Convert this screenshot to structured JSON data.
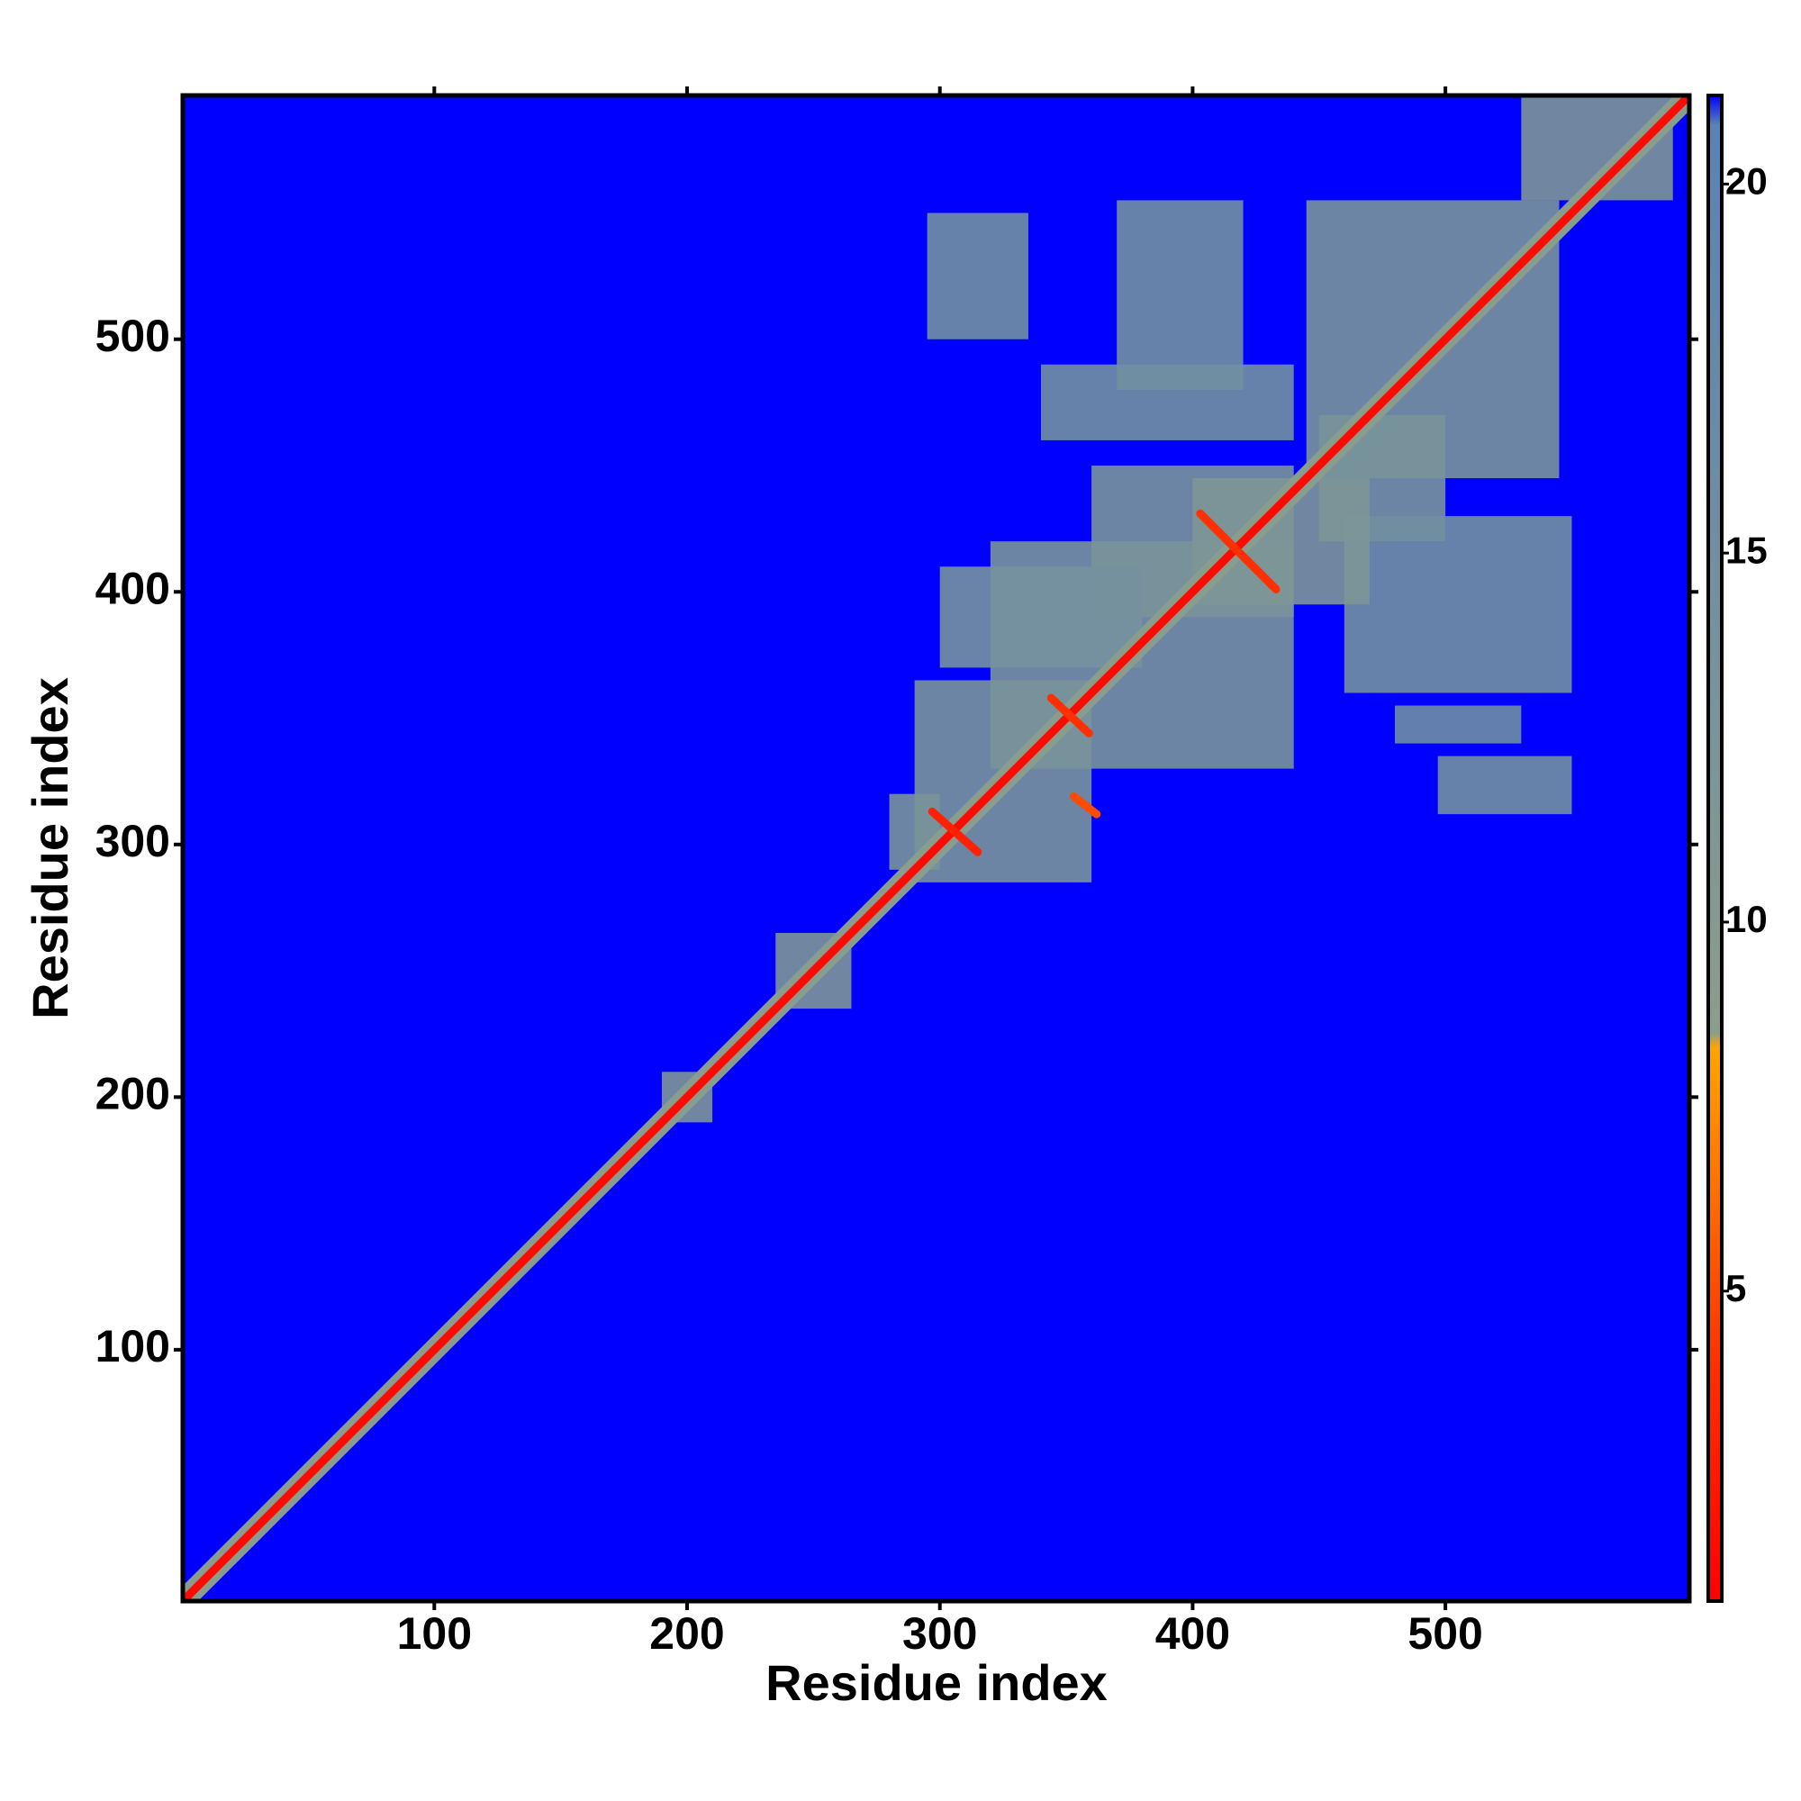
{
  "chart_data": {
    "type": "heatmap",
    "x_label": "Residue index",
    "y_label": "Residue index",
    "xlim": [
      0.5,
      596.5
    ],
    "ylim": [
      0.5,
      596.5
    ],
    "xticks": [
      100,
      200,
      300,
      400,
      500
    ],
    "yticks": [
      100,
      200,
      300,
      400,
      500
    ],
    "fill_value": 21.2,
    "clim": [
      0.8,
      21.2
    ],
    "cticks": [
      5,
      10,
      15,
      20
    ],
    "colorscale": [
      {
        "value": 0.8,
        "color": "#ff0000"
      },
      {
        "value": 4,
        "color": "#ff3000"
      },
      {
        "value": 8.3,
        "color": "#ffa500"
      },
      {
        "value": 8.5,
        "color": "#8a9e8c"
      },
      {
        "value": 20.8,
        "color": "#5b82b4"
      },
      {
        "value": 21.2,
        "color": "#0000ff"
      }
    ],
    "regions": [
      {
        "x": [
          290,
          360
        ],
        "y": [
          285,
          365
        ],
        "value": 13
      },
      {
        "x": [
          320,
          440
        ],
        "y": [
          330,
          420
        ],
        "value": 13
      },
      {
        "x": [
          360,
          440
        ],
        "y": [
          390,
          450
        ],
        "value": 13
      },
      {
        "x": [
          300,
          380
        ],
        "y": [
          370,
          410
        ],
        "value": 14
      },
      {
        "x": [
          295,
          335
        ],
        "y": [
          500,
          550
        ],
        "value": 15
      },
      {
        "x": [
          370,
          420
        ],
        "y": [
          480,
          555
        ],
        "value": 15
      },
      {
        "x": [
          340,
          440
        ],
        "y": [
          460,
          490
        ],
        "value": 15
      },
      {
        "x": [
          445,
          545
        ],
        "y": [
          445,
          555
        ],
        "value": 13
      },
      {
        "x": [
          450,
          500
        ],
        "y": [
          420,
          470
        ],
        "value": 13
      },
      {
        "x": [
          530,
          590
        ],
        "y": [
          555,
          596
        ],
        "value": 12
      },
      {
        "x": [
          460,
          550
        ],
        "y": [
          360,
          430
        ],
        "value": 15
      },
      {
        "x": [
          497,
          550
        ],
        "y": [
          312,
          335
        ],
        "value": 15
      },
      {
        "x": [
          480,
          530
        ],
        "y": [
          340,
          355
        ],
        "value": 16
      },
      {
        "x": [
          190,
          210
        ],
        "y": [
          190,
          210
        ],
        "value": 12
      },
      {
        "x": [
          235,
          265
        ],
        "y": [
          235,
          265
        ],
        "value": 12
      },
      {
        "x": [
          400,
          470
        ],
        "y": [
          395,
          445
        ],
        "value": 12
      },
      {
        "x": [
          280,
          300
        ],
        "y": [
          290,
          320
        ],
        "value": 13
      }
    ],
    "lines": [
      {
        "x": [
          1,
          596
        ],
        "y": [
          1,
          596
        ],
        "value": 9
      },
      {
        "x": [
          1,
          596
        ],
        "y": [
          1,
          596
        ],
        "value": 1.5
      },
      {
        "x": [
          297,
          315
        ],
        "y": [
          313,
          297
        ],
        "value": 3
      },
      {
        "x": [
          344,
          359
        ],
        "y": [
          358,
          344
        ],
        "value": 4
      },
      {
        "x": [
          403,
          433
        ],
        "y": [
          431,
          401
        ],
        "value": 4
      },
      {
        "x": [
          353,
          362
        ],
        "y": [
          319,
          312
        ],
        "value": 5
      }
    ]
  }
}
